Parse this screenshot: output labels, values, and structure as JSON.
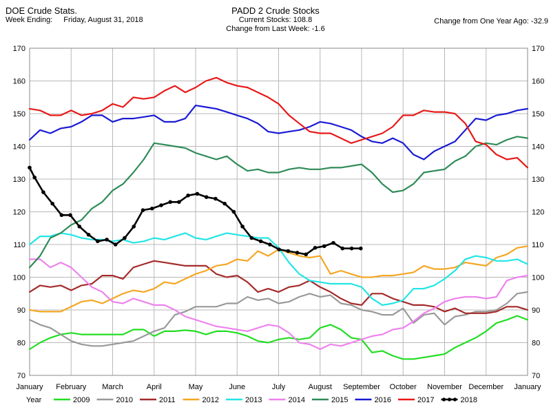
{
  "header": {
    "left_title": "DOE Crude Stats.",
    "week_label": "Week Ending:",
    "week_date": "Friday, August 31, 2018",
    "center_title": "PADD 2 Crude Stocks",
    "current_stocks": "Current Stocks: 108.8",
    "change_week": "Change from Last Week:  -1.6",
    "change_year": "Change from One Year Ago: -32.9"
  },
  "legend_label": "Year",
  "chart_data": {
    "type": "line",
    "title": "PADD 2 Crude Stocks",
    "xlabel": "",
    "ylabel": "",
    "ylim": [
      70,
      170
    ],
    "yticks": [
      70,
      80,
      90,
      100,
      110,
      120,
      130,
      140,
      150,
      160,
      170
    ],
    "xlim": [
      0,
      12
    ],
    "x_tick_labels": [
      "January",
      "February",
      "March",
      "April",
      "May",
      "June",
      "July",
      "August",
      "September",
      "October",
      "November",
      "December",
      "January"
    ],
    "grid": true,
    "legend_position": "bottom",
    "series": [
      {
        "name": "2009",
        "color": "#22dd22",
        "marker": false,
        "x": [
          0,
          0.25,
          0.5,
          0.75,
          1,
          1.25,
          1.5,
          1.75,
          2,
          2.25,
          2.5,
          2.75,
          3,
          3.25,
          3.5,
          3.75,
          4,
          4.25,
          4.5,
          4.75,
          5,
          5.25,
          5.5,
          5.75,
          6,
          6.25,
          6.5,
          6.75,
          7,
          7.25,
          7.5,
          7.75,
          8,
          8.25,
          8.5,
          8.75,
          9,
          9.25,
          9.5,
          9.75,
          10,
          10.25,
          10.5,
          10.75,
          11,
          11.25,
          11.5,
          11.75,
          12
        ],
        "y": [
          78,
          80,
          81.5,
          82.5,
          83,
          82.5,
          82.5,
          82.5,
          82.5,
          82.5,
          84,
          84,
          82,
          83.5,
          83.5,
          83.8,
          83.5,
          82.5,
          83.5,
          83.5,
          83,
          82,
          80.5,
          80,
          81,
          81.5,
          81,
          81.5,
          84.5,
          85.5,
          84,
          81.5,
          81,
          77,
          77.5,
          76,
          75,
          75,
          75.5,
          76,
          76.5,
          78.5,
          80,
          81.5,
          83.5,
          86,
          87,
          88.2,
          87
        ]
      },
      {
        "name": "2010",
        "color": "#999999",
        "marker": false,
        "x": [
          0,
          0.25,
          0.5,
          0.75,
          1,
          1.25,
          1.5,
          1.75,
          2,
          2.25,
          2.5,
          2.75,
          3,
          3.25,
          3.5,
          3.75,
          4,
          4.25,
          4.5,
          4.75,
          5,
          5.25,
          5.5,
          5.75,
          6,
          6.25,
          6.5,
          6.75,
          7,
          7.25,
          7.5,
          7.75,
          8,
          8.25,
          8.5,
          8.75,
          9,
          9.25,
          9.5,
          9.75,
          10,
          10.25,
          10.5,
          10.75,
          11,
          11.25,
          11.5,
          11.75,
          12
        ],
        "y": [
          87,
          85.5,
          84.5,
          82.5,
          80.5,
          79.5,
          79,
          79,
          79.5,
          80,
          80.5,
          82,
          83.5,
          84.5,
          88.5,
          89.5,
          91,
          91,
          91,
          92,
          92,
          94,
          93,
          93.5,
          92,
          92.5,
          94,
          95,
          94,
          94.5,
          92,
          91.5,
          90,
          89.5,
          88.5,
          88.5,
          90.5,
          86,
          88.5,
          89,
          85.5,
          88,
          88.5,
          89.5,
          89.5,
          90,
          92,
          95,
          95.5
        ]
      },
      {
        "name": "2011",
        "color": "#a52a2a",
        "marker": false,
        "x": [
          0,
          0.25,
          0.5,
          0.75,
          1,
          1.25,
          1.5,
          1.75,
          2,
          2.25,
          2.5,
          2.75,
          3,
          3.25,
          3.5,
          3.75,
          4,
          4.25,
          4.5,
          4.75,
          5,
          5.25,
          5.5,
          5.75,
          6,
          6.25,
          6.5,
          6.75,
          7,
          7.25,
          7.5,
          7.75,
          8,
          8.25,
          8.5,
          8.75,
          9,
          9.25,
          9.5,
          9.75,
          10,
          10.25,
          10.5,
          10.75,
          11,
          11.25,
          11.5,
          11.75,
          12
        ],
        "y": [
          95.5,
          97.5,
          97,
          97.5,
          96,
          97.5,
          98,
          100.5,
          100.5,
          99.5,
          103,
          104,
          105,
          104.5,
          104,
          103.5,
          103.5,
          103.5,
          101,
          100,
          100.5,
          98.5,
          95.5,
          96.5,
          95.5,
          97,
          97.5,
          99,
          97,
          95.5,
          93.5,
          92,
          91.5,
          95,
          95,
          93.5,
          92.5,
          91.5,
          91.5,
          91,
          89.5,
          90.5,
          89,
          89,
          89,
          89.5,
          91,
          91,
          90
        ]
      },
      {
        "name": "2012",
        "color": "#f5a623",
        "marker": false,
        "x": [
          0,
          0.25,
          0.5,
          0.75,
          1,
          1.25,
          1.5,
          1.75,
          2,
          2.25,
          2.5,
          2.75,
          3,
          3.25,
          3.5,
          3.75,
          4,
          4.25,
          4.5,
          4.75,
          5,
          5.25,
          5.5,
          5.75,
          6,
          6.25,
          6.5,
          6.75,
          7,
          7.25,
          7.5,
          7.75,
          8,
          8.25,
          8.5,
          8.75,
          9,
          9.25,
          9.5,
          9.75,
          10,
          10.25,
          10.5,
          10.75,
          11,
          11.25,
          11.5,
          11.75,
          12
        ],
        "y": [
          90,
          89.5,
          89.5,
          89.5,
          91,
          92.5,
          93,
          92,
          93.5,
          95,
          96,
          95.5,
          96.5,
          98.5,
          98,
          99.5,
          101,
          102,
          103.5,
          104,
          105.5,
          105,
          108,
          106.5,
          108.5,
          107.5,
          106.5,
          106,
          106.5,
          101,
          102,
          101,
          100,
          100,
          100.5,
          100.5,
          101,
          101.5,
          103.5,
          102.5,
          102.5,
          103,
          104.5,
          104,
          103.5,
          106,
          107,
          109,
          109.5
        ]
      },
      {
        "name": "2013",
        "color": "#22e5e5",
        "marker": false,
        "x": [
          0,
          0.25,
          0.5,
          0.75,
          1,
          1.25,
          1.5,
          1.75,
          2,
          2.25,
          2.5,
          2.75,
          3,
          3.25,
          3.5,
          3.75,
          4,
          4.25,
          4.5,
          4.75,
          5,
          5.25,
          5.5,
          5.75,
          6,
          6.25,
          6.5,
          6.75,
          7,
          7.25,
          7.5,
          7.75,
          8,
          8.25,
          8.5,
          8.75,
          9,
          9.25,
          9.5,
          9.75,
          10,
          10.25,
          10.5,
          10.75,
          11,
          11.25,
          11.5,
          11.75,
          12
        ],
        "y": [
          110,
          112.5,
          112.5,
          113.5,
          113,
          112,
          111.5,
          111.5,
          111,
          111.5,
          110.5,
          111,
          112,
          111.5,
          112.5,
          113.5,
          112,
          111.5,
          112.5,
          113.5,
          113,
          112.5,
          112,
          112,
          109,
          104.5,
          101,
          99,
          98.5,
          98,
          98,
          98,
          97,
          93.5,
          91.5,
          92,
          93,
          96.5,
          96.5,
          97.5,
          99.5,
          102,
          105.5,
          106.5,
          106,
          105,
          105,
          105.5,
          104
        ]
      },
      {
        "name": "2014",
        "color": "#ee82ee",
        "marker": false,
        "x": [
          0,
          0.25,
          0.5,
          0.75,
          1,
          1.25,
          1.5,
          1.75,
          2,
          2.25,
          2.5,
          2.75,
          3,
          3.25,
          3.5,
          3.75,
          4,
          4.25,
          4.5,
          4.75,
          5,
          5.25,
          5.5,
          5.75,
          6,
          6.25,
          6.5,
          6.75,
          7,
          7.25,
          7.5,
          7.75,
          8,
          8.25,
          8.5,
          8.75,
          9,
          9.25,
          9.5,
          9.75,
          10,
          10.25,
          10.5,
          10.75,
          11,
          11.25,
          11.5,
          11.75,
          12
        ],
        "y": [
          105.5,
          105.5,
          103,
          104.5,
          103,
          100,
          97,
          95.5,
          92.5,
          92,
          93.5,
          92.5,
          91.5,
          91.5,
          90,
          88,
          87,
          86,
          85,
          84.5,
          84,
          83.5,
          84.5,
          85.5,
          85,
          83,
          80,
          79.5,
          78,
          79.5,
          79,
          80,
          81,
          82,
          82.5,
          84,
          84.5,
          86.5,
          89,
          90.5,
          92.5,
          93.5,
          94,
          94,
          93.5,
          94,
          99,
          100,
          100.5
        ]
      },
      {
        "name": "2015",
        "color": "#2e8b57",
        "marker": false,
        "x": [
          0,
          0.25,
          0.5,
          0.75,
          1,
          1.25,
          1.5,
          1.75,
          2,
          2.25,
          2.5,
          2.75,
          3,
          3.25,
          3.5,
          3.75,
          4,
          4.25,
          4.5,
          4.75,
          5,
          5.25,
          5.5,
          5.75,
          6,
          6.25,
          6.5,
          6.75,
          7,
          7.25,
          7.5,
          7.75,
          8,
          8.25,
          8.5,
          8.75,
          9,
          9.25,
          9.5,
          9.75,
          10,
          10.25,
          10.5,
          10.75,
          11,
          11.25,
          11.5,
          11.75,
          12
        ],
        "y": [
          103,
          106.5,
          112,
          113.5,
          116,
          117.5,
          121,
          123,
          126.5,
          128.5,
          132,
          136,
          141,
          140.5,
          140,
          139.5,
          138,
          137,
          136,
          137,
          134.5,
          132.5,
          133,
          132,
          132,
          133,
          133.5,
          133,
          133,
          133.5,
          133.5,
          134,
          134.5,
          132,
          128.5,
          126,
          126.5,
          128.5,
          132,
          132.5,
          133,
          135.5,
          137,
          140,
          141,
          140.5,
          142,
          143,
          142.5
        ]
      },
      {
        "name": "2016",
        "color": "#1a1ad4",
        "marker": false,
        "x": [
          0,
          0.25,
          0.5,
          0.75,
          1,
          1.25,
          1.5,
          1.75,
          2,
          2.25,
          2.5,
          2.75,
          3,
          3.25,
          3.5,
          3.75,
          4,
          4.25,
          4.5,
          4.75,
          5,
          5.25,
          5.5,
          5.75,
          6,
          6.25,
          6.5,
          6.75,
          7,
          7.25,
          7.5,
          7.75,
          8,
          8.25,
          8.5,
          8.75,
          9,
          9.25,
          9.5,
          9.75,
          10,
          10.25,
          10.5,
          10.75,
          11,
          11.25,
          11.5,
          11.75,
          12
        ],
        "y": [
          142,
          145,
          144,
          145.5,
          146,
          147.5,
          149.5,
          149.5,
          147.5,
          148.5,
          148.5,
          149,
          149.5,
          147.5,
          147.5,
          148.5,
          152.5,
          152,
          151.5,
          150.5,
          149.5,
          148.5,
          147,
          144.5,
          144,
          144.5,
          145,
          146,
          147.5,
          147,
          146,
          145,
          143,
          141.5,
          141,
          142.5,
          141,
          137.5,
          136,
          138.5,
          140,
          141.5,
          145,
          148.5,
          148,
          149.5,
          150,
          151,
          151.5
        ]
      },
      {
        "name": "2017",
        "color": "#e81818",
        "marker": false,
        "x": [
          0,
          0.25,
          0.5,
          0.75,
          1,
          1.25,
          1.5,
          1.75,
          2,
          2.25,
          2.5,
          2.75,
          3,
          3.25,
          3.5,
          3.75,
          4,
          4.25,
          4.5,
          4.75,
          5,
          5.25,
          5.5,
          5.75,
          6,
          6.25,
          6.5,
          6.75,
          7,
          7.25,
          7.5,
          7.75,
          8,
          8.25,
          8.5,
          8.75,
          9,
          9.25,
          9.5,
          9.75,
          10,
          10.25,
          10.5,
          10.75,
          11,
          11.25,
          11.5,
          11.75,
          12
        ],
        "y": [
          151.5,
          151,
          149.5,
          149.5,
          151,
          149.5,
          150,
          151,
          153,
          152,
          155,
          154.5,
          155,
          157,
          158.5,
          156.5,
          158,
          160,
          161,
          159.5,
          158.5,
          158,
          156.5,
          155,
          153,
          149.5,
          147,
          144.5,
          144,
          144,
          142.5,
          141,
          142,
          143,
          144,
          146,
          149.5,
          149.5,
          151,
          150.5,
          150.5,
          150,
          147,
          141.5,
          140.5,
          137.5,
          136,
          136.5,
          133.5
        ]
      },
      {
        "name": "2018",
        "color": "#000000",
        "marker": true,
        "x": [
          0,
          0.12,
          0.33,
          0.55,
          0.77,
          0.98,
          1.2,
          1.42,
          1.64,
          1.86,
          2.07,
          2.29,
          2.51,
          2.73,
          2.95,
          3.17,
          3.39,
          3.6,
          3.82,
          4.04,
          4.26,
          4.48,
          4.7,
          4.92,
          5.13,
          5.35,
          5.57,
          5.79,
          6.01,
          6.23,
          6.45,
          6.66,
          6.88,
          7.1,
          7.32,
          7.54,
          7.76,
          7.98
        ],
        "y": [
          133.5,
          130.5,
          126,
          122.5,
          119,
          119,
          115.5,
          113,
          111,
          111.5,
          110,
          112,
          115.5,
          120.5,
          121,
          122,
          123,
          123,
          125,
          125.5,
          124.5,
          124,
          122.5,
          120,
          115.5,
          112,
          111,
          110,
          108.5,
          108,
          107.5,
          107,
          109,
          109.5,
          110.5,
          108.8,
          108.8,
          108.8
        ]
      }
    ]
  }
}
